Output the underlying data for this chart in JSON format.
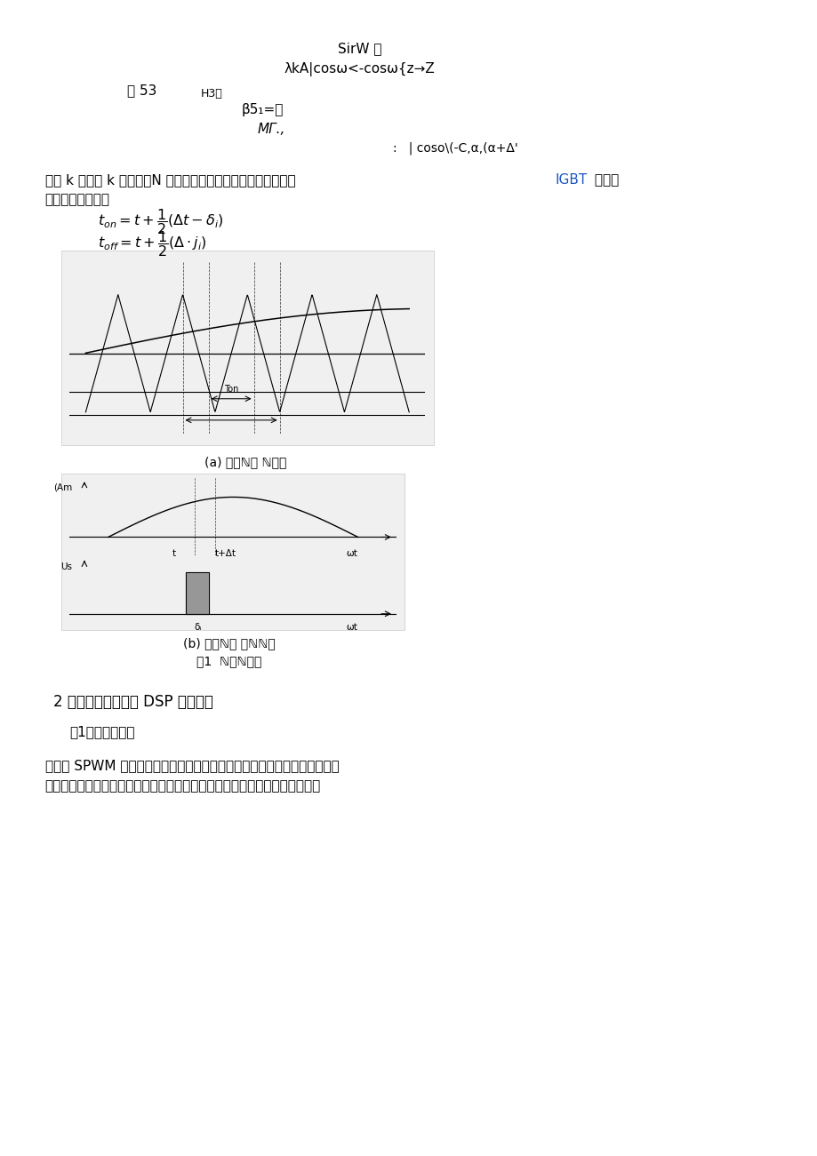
{
  "bg_color": "#ffffff",
  "page_width": 9.2,
  "page_height": 13.01,
  "dpi": 100,
  "header_text": "SirW 山",
  "formula1_display": "λkA|cosω<-cosω{z→Z",
  "line1_a": "而 53",
  "line1_b": "H3，",
  "line2_text": "β5₁=，",
  "line3_text": "MΓ.,",
  "line4_text": ":   | coso\\(-C,α,(α+Δ'",
  "para1_a": "式中 k 代表第 k 次采样，N 代表半周期内对正弦波的采样点。则 ",
  "para1_igbt": "IGBT",
  "para1_b": " 的开关",
  "para1_line2": "时间可如下计算：",
  "fig_a_caption": "(a) 规则ℕ｀ ℕ理图",
  "fig_b_caption": "(b) 直接ℕ｀ ／ℕℕ理",
  "fig1_caption": "图1  ℕ／ℕ理图",
  "section2_text": "2 算法的分析及其在 DSP 上的实现",
  "subsection1_text": "（1）算法的分析",
  "body1_line1": "在生成 SPWM 波形时，通常有查表和实时计算两种方法，实际使用时往往是",
  "body1_line2": "两种方法的结合，即先离线进行必要的计算存入内存，运行时再进行较为简单",
  "igbt_color": "#1a56c4",
  "text_color": "#000000"
}
